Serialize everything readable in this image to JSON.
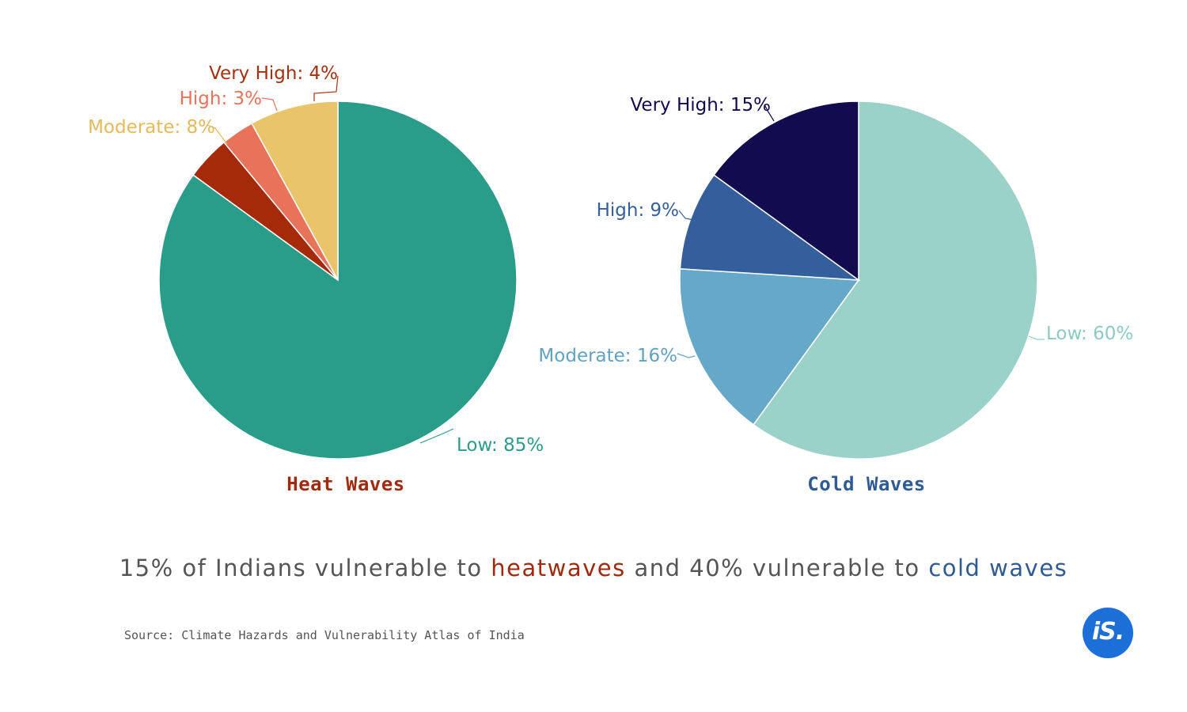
{
  "chart_data": [
    {
      "type": "pie",
      "title": "Heat Waves",
      "title_color": "#9e2a10",
      "slices": [
        {
          "label": "Low",
          "value": 85,
          "text": "Low: 85%",
          "color": "#2a9d8a",
          "label_color": "#2a9d8a"
        },
        {
          "label": "Very High",
          "value": 4,
          "text": "Very High: 4%",
          "color": "#a52a0a",
          "label_color": "#a5300f"
        },
        {
          "label": "High",
          "value": 3,
          "text": "High: 3%",
          "color": "#e8735a",
          "label_color": "#e8735a"
        },
        {
          "label": "Moderate",
          "value": 8,
          "text": "Moderate: 8%",
          "color": "#e9c46a",
          "label_color": "#e3b95a"
        }
      ]
    },
    {
      "type": "pie",
      "title": "Cold Waves",
      "title_color": "#2f5b94",
      "slices": [
        {
          "label": "Low",
          "value": 60,
          "text": "Low: 60%",
          "color": "#9ad1c8",
          "label_color": "#8ccbc0"
        },
        {
          "label": "Moderate",
          "value": 16,
          "text": "Moderate: 16%",
          "color": "#66a8c8",
          "label_color": "#5fa3c4"
        },
        {
          "label": "High",
          "value": 9,
          "text": "High: 9%",
          "color": "#355f9c",
          "label_color": "#355f9c"
        },
        {
          "label": "Very High",
          "value": 15,
          "text": "Very High: 15%",
          "color": "#120b4e",
          "label_color": "#120b4e"
        }
      ]
    }
  ],
  "headline": {
    "part1": "15% of Indians vulnerable to ",
    "heat_word": "heatwaves",
    "part2": " and 40% vulnerable to ",
    "cold_word": "cold waves",
    "heat_color": "#9e2a10",
    "cold_color": "#2f5b94"
  },
  "source": "Source: Climate Hazards and Vulnerability Atlas of India",
  "logo": {
    "text": "iS.",
    "color": "#1b6fd6"
  }
}
